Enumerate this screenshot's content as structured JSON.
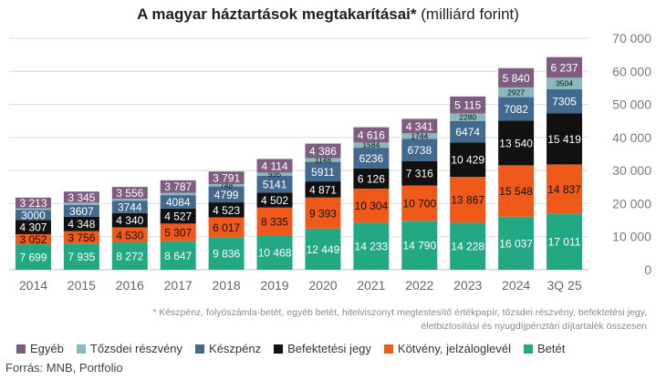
{
  "title_main": "A magyar háztartások megtakarításai*",
  "title_sub": " (milliárd forint)",
  "footnote": "* Készpénz, folyószámla-betét, egyéb betét, hitelviszonyt megtestesítő értékpapír, tőzsdei részvény, befektetési jegy, életbiztosítási és nyugdíjpénztári díjtartalék összesen",
  "source": "Forrás: MNB, Portfolio",
  "legend": [
    {
      "label": "Egyéb",
      "color": "#7e5d80"
    },
    {
      "label": "Tőzsdei részvény",
      "color": "#8ab8bb"
    },
    {
      "label": "Készpénz",
      "color": "#44698f"
    },
    {
      "label": "Befektetési jegy",
      "color": "#111111"
    },
    {
      "label": "Kötvény, jelzáloglevél",
      "color": "#ef5a1a"
    },
    {
      "label": "Betét",
      "color": "#22a883"
    }
  ],
  "chart_data": {
    "type": "bar",
    "stacked": true,
    "categories": [
      "2014",
      "2015",
      "2016",
      "2017",
      "2018",
      "2019",
      "2020",
      "2021",
      "2022",
      "2023",
      "2024",
      "3Q 25"
    ],
    "ylim": [
      0,
      70000
    ],
    "yticks": [
      "0",
      "10 000",
      "20 000",
      "30 000",
      "40 000",
      "50 000",
      "60 000",
      "70 000"
    ],
    "grid": true,
    "legend_position": "bottom",
    "series": [
      {
        "name": "Betét",
        "color": "#22a883",
        "values": [
          7699,
          7935,
          8272,
          8647,
          9836,
          10468,
          12449,
          14233,
          14790,
          14228,
          16037,
          17011
        ],
        "labels": [
          "7 699",
          "7 935",
          "8 272",
          "8 647",
          "9 836",
          "10 468",
          "12 449",
          "14 233",
          "14 790",
          "14 228",
          "16 037",
          "17 011"
        ],
        "label_color": "#ffffff"
      },
      {
        "name": "Kötvény, jelzáloglevél",
        "color": "#ef5a1a",
        "values": [
          3052,
          3756,
          4530,
          5307,
          6017,
          8335,
          9393,
          10304,
          10700,
          13867,
          15548,
          14837
        ],
        "labels": [
          "3 052",
          "3 756",
          "4 530",
          "5 307",
          "6 017",
          "8 335",
          "9 393",
          "10 304",
          "10 700",
          "13 867",
          "15 548",
          "14 837"
        ],
        "label_color": "#111111"
      },
      {
        "name": "Befektetési jegy",
        "color": "#111111",
        "values": [
          4307,
          4348,
          4340,
          4527,
          4523,
          4502,
          4871,
          6126,
          7316,
          10429,
          13540,
          15419
        ],
        "labels": [
          "4 307",
          "4 348",
          "4 340",
          "4 527",
          "4 523",
          "4 502",
          "4 871",
          "6 126",
          "7 316",
          "10 429",
          "13 540",
          "15 419"
        ],
        "label_color": "#ffffff"
      },
      {
        "name": "Készpénz",
        "color": "#44698f",
        "values": [
          3000,
          3607,
          3744,
          4084,
          4799,
          5141,
          5911,
          6236,
          6738,
          6474,
          7082,
          7305
        ],
        "labels": [
          "3000",
          "3607",
          "3744",
          "4084",
          "4799",
          "5141",
          "5911",
          "6236",
          "6738",
          "6474",
          "7082",
          "7305"
        ],
        "label_color": "#ffffff"
      },
      {
        "name": "Tőzsdei részvény",
        "color": "#8ab8bb",
        "values": [
          550,
          650,
          600,
          700,
          748,
          935,
          1148,
          1584,
          1744,
          2280,
          2927,
          3504
        ],
        "labels": [
          "",
          "",
          "",
          "",
          "748",
          "935",
          "1148",
          "1584",
          "1744",
          "2280",
          "2927",
          "3504"
        ],
        "label_color": "#111111"
      },
      {
        "name": "Egyéb",
        "color": "#7e5d80",
        "values": [
          3213,
          3345,
          3556,
          3787,
          3791,
          4114,
          4386,
          4616,
          4341,
          5115,
          5840,
          6237
        ],
        "labels": [
          "3 213",
          "3 345",
          "3 556",
          "3 787",
          "3 791",
          "4 114",
          "4 386",
          "4 616",
          "4 341",
          "5 115",
          "5 840",
          "6 237"
        ],
        "label_color": "#ffffff"
      }
    ]
  }
}
